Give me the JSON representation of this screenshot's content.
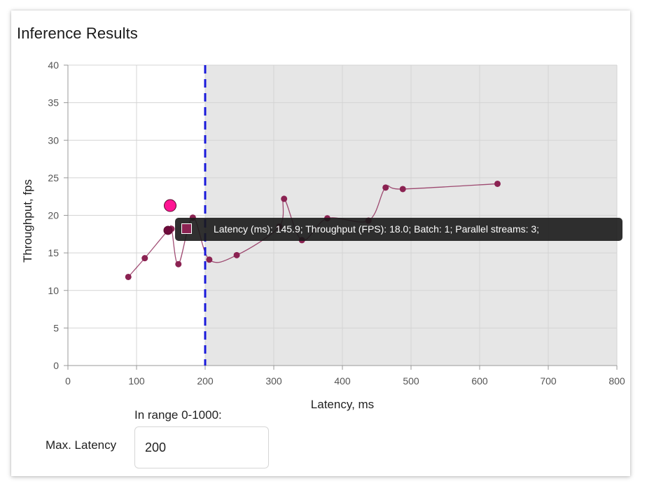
{
  "card": {
    "title": "Inference Results"
  },
  "chart_data": {
    "type": "scatter",
    "xlabel": "Latency, ms",
    "ylabel": "Throughput, fps",
    "xlim": [
      0,
      800
    ],
    "ylim": [
      0,
      40
    ],
    "x_ticks": [
      "0",
      "100",
      "200",
      "300",
      "400",
      "500",
      "600",
      "700",
      "800"
    ],
    "y_ticks": [
      "0",
      "5",
      "10",
      "15",
      "20",
      "25",
      "30",
      "35",
      "40"
    ],
    "grid": true,
    "threshold_line": {
      "x": 200,
      "style": "dashed",
      "color": "#1a1adb"
    },
    "shaded_region": {
      "x_from": 200,
      "x_to": 800,
      "color": "#e6e6e6"
    },
    "series": [
      {
        "color": "#8b2252",
        "line_color": "#8b2252",
        "points": [
          {
            "x": 88,
            "y": 11.8
          },
          {
            "x": 112,
            "y": 14.3
          },
          {
            "x": 145.9,
            "y": 18.0
          },
          {
            "x": 151,
            "y": 18.2
          },
          {
            "x": 161,
            "y": 13.5
          },
          {
            "x": 182,
            "y": 19.7
          },
          {
            "x": 206,
            "y": 14.1
          },
          {
            "x": 246,
            "y": 14.7
          },
          {
            "x": 308,
            "y": 18.5
          },
          {
            "x": 315,
            "y": 22.2
          },
          {
            "x": 341,
            "y": 16.7
          },
          {
            "x": 378,
            "y": 19.6
          },
          {
            "x": 438,
            "y": 19.3
          },
          {
            "x": 463,
            "y": 23.7
          },
          {
            "x": 488,
            "y": 23.5
          },
          {
            "x": 626,
            "y": 24.2
          }
        ]
      }
    ],
    "highlight_points": [
      {
        "x": 149,
        "y": 21.3,
        "color": "#ff1493"
      },
      {
        "x": 145.9,
        "y": 18.0,
        "color": "#6e0b3c"
      }
    ],
    "tooltip": {
      "text": "Latency (ms): 145.9;   Throughput (FPS): 18.0;   Batch: 1;   Parallel streams: 3;"
    }
  },
  "controls": {
    "range_hint": "In range 0-1000:",
    "max_latency_label": "Max. Latency",
    "max_latency_value": "200"
  }
}
